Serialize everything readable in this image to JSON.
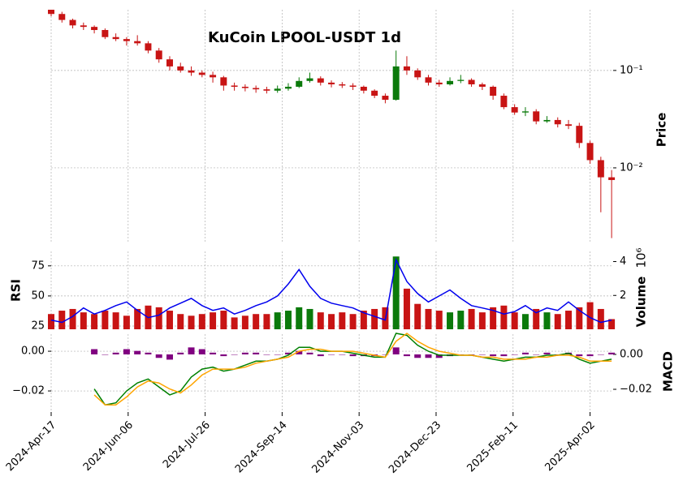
{
  "chart_data": [
    {
      "type": "candlestick",
      "title": "KuCoin LPOOL-USDT 1d",
      "ylabel": "Price",
      "log": true,
      "grid": true,
      "up_color": "#0b7a0b",
      "down_color": "#c81414",
      "x": [
        "2024-04-17",
        "2024-04-24",
        "2024-05-01",
        "2024-05-08",
        "2024-05-15",
        "2024-05-22",
        "2024-05-29",
        "2024-06-05",
        "2024-06-12",
        "2024-06-19",
        "2024-06-26",
        "2024-07-03",
        "2024-07-10",
        "2024-07-17",
        "2024-07-24",
        "2024-07-31",
        "2024-08-07",
        "2024-08-14",
        "2024-08-21",
        "2024-08-28",
        "2024-09-04",
        "2024-09-11",
        "2024-09-18",
        "2024-09-25",
        "2024-10-02",
        "2024-10-09",
        "2024-10-16",
        "2024-10-23",
        "2024-10-30",
        "2024-11-06",
        "2024-11-13",
        "2024-11-20",
        "2024-11-27",
        "2024-12-04",
        "2024-12-11",
        "2024-12-18",
        "2024-12-25",
        "2025-01-01",
        "2025-01-08",
        "2025-01-15",
        "2025-01-22",
        "2025-01-29",
        "2025-02-05",
        "2025-02-12",
        "2025-02-19",
        "2025-02-26",
        "2025-03-05",
        "2025-03-12",
        "2025-03-19",
        "2025-03-26",
        "2025-04-02",
        "2025-04-09",
        "2025-04-16"
      ],
      "open": [
        0.42,
        0.38,
        0.33,
        0.29,
        0.28,
        0.26,
        0.22,
        0.21,
        0.2,
        0.19,
        0.16,
        0.13,
        0.11,
        0.1,
        0.095,
        0.09,
        0.085,
        0.07,
        0.068,
        0.066,
        0.064,
        0.062,
        0.065,
        0.068,
        0.078,
        0.083,
        0.075,
        0.072,
        0.07,
        0.068,
        0.062,
        0.055,
        0.05,
        0.11,
        0.1,
        0.085,
        0.075,
        0.072,
        0.078,
        0.08,
        0.072,
        0.068,
        0.055,
        0.042,
        0.037,
        0.038,
        0.03,
        0.031,
        0.028,
        0.027,
        0.018,
        0.012,
        0.008
      ],
      "high": [
        0.42,
        0.4,
        0.34,
        0.31,
        0.29,
        0.27,
        0.24,
        0.22,
        0.23,
        0.2,
        0.17,
        0.14,
        0.12,
        0.11,
        0.1,
        0.097,
        0.088,
        0.075,
        0.072,
        0.07,
        0.068,
        0.07,
        0.074,
        0.085,
        0.095,
        0.087,
        0.079,
        0.076,
        0.074,
        0.07,
        0.064,
        0.058,
        0.16,
        0.14,
        0.105,
        0.09,
        0.08,
        0.085,
        0.09,
        0.083,
        0.075,
        0.07,
        0.058,
        0.045,
        0.042,
        0.04,
        0.034,
        0.033,
        0.031,
        0.029,
        0.019,
        0.013,
        0.0095
      ],
      "low": [
        0.36,
        0.31,
        0.27,
        0.26,
        0.24,
        0.21,
        0.2,
        0.18,
        0.18,
        0.15,
        0.12,
        0.1,
        0.095,
        0.088,
        0.085,
        0.075,
        0.062,
        0.062,
        0.061,
        0.059,
        0.058,
        0.059,
        0.062,
        0.066,
        0.075,
        0.07,
        0.067,
        0.066,
        0.063,
        0.058,
        0.052,
        0.046,
        0.049,
        0.09,
        0.08,
        0.07,
        0.068,
        0.07,
        0.074,
        0.068,
        0.063,
        0.05,
        0.04,
        0.035,
        0.034,
        0.028,
        0.029,
        0.026,
        0.025,
        0.016,
        0.011,
        0.0035,
        0.0019
      ],
      "close": [
        0.38,
        0.33,
        0.29,
        0.28,
        0.26,
        0.22,
        0.21,
        0.2,
        0.19,
        0.16,
        0.13,
        0.11,
        0.1,
        0.095,
        0.09,
        0.085,
        0.07,
        0.068,
        0.066,
        0.064,
        0.062,
        0.065,
        0.068,
        0.078,
        0.083,
        0.075,
        0.072,
        0.07,
        0.068,
        0.062,
        0.055,
        0.05,
        0.11,
        0.1,
        0.085,
        0.075,
        0.072,
        0.078,
        0.08,
        0.072,
        0.068,
        0.055,
        0.042,
        0.037,
        0.038,
        0.03,
        0.031,
        0.028,
        0.027,
        0.018,
        0.012,
        0.008,
        0.0075
      ],
      "ylim": [
        0.00168,
        0.42
      ],
      "yticks": [
        {
          "value": 0.1,
          "label": "10⁻¹"
        },
        {
          "value": 0.01,
          "label": "10⁻²"
        }
      ]
    },
    {
      "type": "volume_rsi",
      "ylabel": "RSI",
      "y2label": "Volume",
      "y2_offset_label": "10⁶",
      "rsi_color": "#0000ee",
      "grid": true,
      "rsi": [
        30,
        28,
        33,
        40,
        35,
        38,
        42,
        45,
        38,
        32,
        34,
        40,
        44,
        48,
        42,
        38,
        40,
        35,
        38,
        42,
        45,
        50,
        60,
        72,
        58,
        48,
        44,
        42,
        40,
        36,
        33,
        30,
        80,
        62,
        52,
        45,
        50,
        55,
        48,
        42,
        40,
        38,
        35,
        37,
        42,
        36,
        40,
        38,
        45,
        38,
        32,
        28,
        30
      ],
      "volume": [
        900000,
        1100000,
        1200000,
        1000000,
        900000,
        1100000,
        1000000,
        800000,
        1200000,
        1400000,
        1300000,
        1100000,
        900000,
        800000,
        900000,
        1000000,
        1100000,
        700000,
        800000,
        900000,
        900000,
        1000000,
        1100000,
        1300000,
        1200000,
        1000000,
        900000,
        1000000,
        900000,
        1100000,
        1200000,
        1300000,
        4300000,
        2400000,
        1500000,
        1200000,
        1100000,
        1000000,
        1100000,
        1200000,
        1000000,
        1300000,
        1400000,
        1000000,
        900000,
        1200000,
        1000000,
        900000,
        1100000,
        1300000,
        1600000,
        1200000,
        600000
      ],
      "ylim": [
        22.3,
        87
      ],
      "yticks": [
        25,
        50,
        75
      ],
      "y2lim": [
        0,
        4600000
      ],
      "y2ticks": [
        {
          "value": 2000000,
          "label": "2"
        },
        {
          "value": 4000000,
          "label": "4"
        }
      ]
    },
    {
      "type": "macd",
      "ylabel": "MACD",
      "grid": true,
      "macd_color": "#008000",
      "signal_color": "#ffa500",
      "histogram_color": "#800080",
      "macd": [
        null,
        null,
        null,
        null,
        -0.019,
        -0.027,
        -0.026,
        -0.02,
        -0.016,
        -0.014,
        -0.018,
        -0.022,
        -0.02,
        -0.013,
        -0.009,
        -0.008,
        -0.01,
        -0.009,
        -0.007,
        -0.005,
        -0.005,
        -0.004,
        -0.002,
        0.002,
        0.002,
        0.0,
        0.0,
        0.0,
        -0.001,
        -0.002,
        -0.003,
        -0.003,
        0.009,
        0.008,
        0.003,
        0.0,
        -0.002,
        -0.002,
        -0.002,
        -0.002,
        -0.003,
        -0.004,
        -0.005,
        -0.004,
        -0.003,
        -0.003,
        -0.002,
        -0.002,
        -0.001,
        -0.004,
        -0.006,
        -0.005,
        -0.004
      ],
      "signal": [
        null,
        null,
        null,
        null,
        -0.022,
        -0.027,
        -0.027,
        -0.023,
        -0.018,
        -0.015,
        -0.016,
        -0.019,
        -0.021,
        -0.017,
        -0.012,
        -0.009,
        -0.009,
        -0.009,
        -0.008,
        -0.006,
        -0.005,
        -0.004,
        -0.003,
        0.0,
        0.001,
        0.001,
        0.0,
        0.0,
        0.0,
        -0.001,
        -0.002,
        -0.003,
        0.005,
        0.009,
        0.005,
        0.002,
        0.0,
        -0.001,
        -0.002,
        -0.002,
        -0.003,
        -0.003,
        -0.004,
        -0.004,
        -0.004,
        -0.003,
        -0.003,
        -0.002,
        -0.002,
        -0.003,
        -0.005,
        -0.005,
        -0.005
      ],
      "histogram": [
        null,
        null,
        null,
        null,
        0.003,
        0,
        0.001,
        0.003,
        0.002,
        0.001,
        -0.002,
        -0.003,
        0.001,
        0.004,
        0.003,
        0.001,
        -0.001,
        0,
        0.001,
        0.001,
        0,
        0,
        0.001,
        0.002,
        0.001,
        -0.001,
        0,
        0,
        -0.001,
        -0.001,
        -0.001,
        0,
        0.004,
        -0.001,
        -0.002,
        -0.002,
        -0.002,
        -0.001,
        0,
        0,
        0,
        -0.001,
        -0.001,
        0,
        0.001,
        0,
        0.001,
        0,
        0.001,
        -0.001,
        -0.001,
        0,
        0.001
      ],
      "ylim": [
        -0.0306,
        0.0086
      ],
      "yticks": [
        {
          "value": 0,
          "label": "0.00"
        },
        {
          "value": -0.02,
          "label": "−0.02"
        }
      ],
      "y2lim": [
        -0.033,
        0.0116
      ],
      "y2ticks": [
        {
          "value": 0,
          "label": "0.00"
        },
        {
          "value": -0.02,
          "label": "−0.02"
        }
      ],
      "xlim": [
        "2024-04-17",
        "2025-04-17"
      ],
      "xticks": [
        {
          "value": "2024-04-17",
          "label": "2024-Apr-17"
        },
        {
          "value": "2024-06-06",
          "label": "2024-Jun-06"
        },
        {
          "value": "2024-07-26",
          "label": "2024-Jul-26"
        },
        {
          "value": "2024-09-14",
          "label": "2024-Sep-14"
        },
        {
          "value": "2024-11-03",
          "label": "2024-Nov-03"
        },
        {
          "value": "2024-12-23",
          "label": "2024-Dec-23"
        },
        {
          "value": "2025-02-11",
          "label": "2025-Feb-11"
        },
        {
          "value": "2025-04-02",
          "label": "2025-Apr-02"
        }
      ]
    }
  ]
}
